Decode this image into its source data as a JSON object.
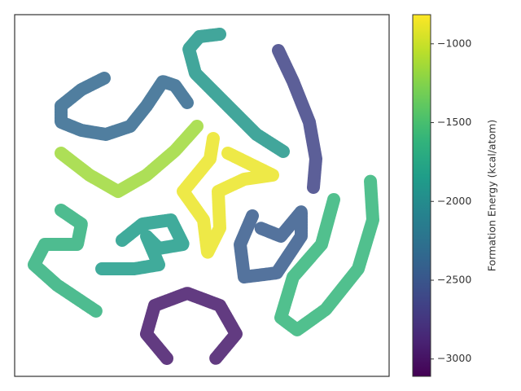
{
  "chart_data": {
    "type": "scatter",
    "colorbar_label": "Formation Energy (kcal/atom)",
    "xlim": [
      0,
      460
    ],
    "ylim": [
      0,
      444
    ],
    "clim": [
      -3110,
      -815
    ],
    "cticks": [
      {
        "value": -1000,
        "label": "−1000"
      },
      {
        "value": -1500,
        "label": "−1500"
      },
      {
        "value": -2000,
        "label": "−2000"
      },
      {
        "value": -2500,
        "label": "−2500"
      },
      {
        "value": -3000,
        "label": "−3000"
      }
    ],
    "colormap": "viridis",
    "series": [
      {
        "energy": -2350,
        "x": [
          110,
          82,
          57,
          57,
          82,
          112,
          142,
          162,
          182,
          197,
          212
        ],
        "y": [
          366,
          352,
          332,
          312,
          302,
          297,
          307,
          332,
          362,
          357,
          336
        ]
      },
      {
        "energy": -1900,
        "x": [
          252,
          227,
          214,
          222,
          247,
          272,
          297,
          330
        ],
        "y": [
          420,
          417,
          402,
          372,
          347,
          322,
          297,
          276
        ]
      },
      {
        "energy": -2650,
        "x": [
          324,
          342,
          362,
          370,
          367
        ],
        "y": [
          400,
          362,
          312,
          267,
          232
        ]
      },
      {
        "energy": -1150,
        "x": [
          57,
          92,
          127,
          162,
          197,
          224
        ],
        "y": [
          274,
          247,
          227,
          247,
          277,
          307
        ]
      },
      {
        "energy": -880,
        "x": [
          244,
          240,
          207,
          232,
          237,
          252,
          250,
          282,
          317,
          262
        ],
        "y": [
          292,
          267,
          227,
          192,
          152,
          182,
          227,
          242,
          247,
          274
        ]
      },
      {
        "energy": -1650,
        "x": [
          57,
          82,
          77,
          37,
          24,
          52,
          100
        ],
        "y": [
          204,
          187,
          162,
          162,
          137,
          112,
          80
        ]
      },
      {
        "energy": -1850,
        "x": [
          132,
          157,
          192,
          207,
          177,
          162,
          177,
          147,
          107
        ],
        "y": [
          167,
          187,
          192,
          162,
          157,
          172,
          137,
          132,
          132
        ]
      },
      {
        "energy": -2450,
        "x": [
          292,
          277,
          282,
          322,
          352,
          352,
          327,
          302
        ],
        "y": [
          197,
          162,
          122,
          127,
          172,
          202,
          172,
          182
        ]
      },
      {
        "energy": -1600,
        "x": [
          392,
          377,
          342,
          327,
          347,
          382,
          422,
          440,
          437
        ],
        "y": [
          217,
          162,
          122,
          72,
          57,
          82,
          132,
          192,
          240
        ]
      },
      {
        "energy": -2950,
        "x": [
          187,
          162,
          172,
          212,
          252,
          272,
          247
        ],
        "y": [
          22,
          52,
          87,
          102,
          87,
          52,
          22
        ]
      }
    ]
  }
}
